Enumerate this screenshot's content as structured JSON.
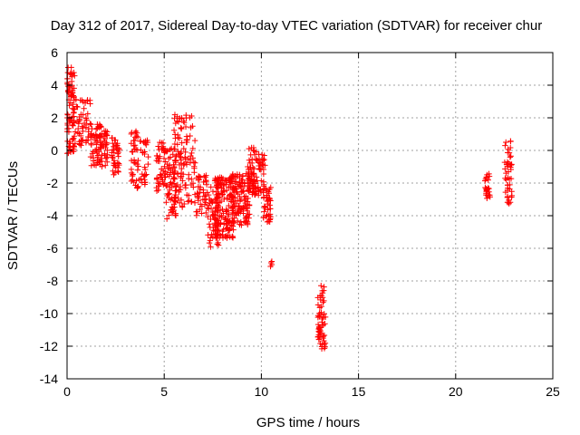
{
  "chart_data": {
    "type": "scatter",
    "title": "Day 312 of 2017, Sidereal Day-to-day VTEC variation (SDTVAR) for receiver chur",
    "xlabel": "GPS time / hours",
    "ylabel": "SDTVAR / TECUs",
    "xlim": [
      0,
      25
    ],
    "ylim": [
      -14,
      6
    ],
    "xticks": [
      "0",
      "5",
      "10",
      "15",
      "20",
      "25"
    ],
    "yticks": [
      "-14",
      "-12",
      "-10",
      "-8",
      "-6",
      "-4",
      "-2",
      "0",
      "2",
      "4",
      "6"
    ],
    "grid": true,
    "marker": "plus",
    "marker_color": "#ff0000",
    "clusters": [
      {
        "x": [
          0.0,
          0.4
        ],
        "y": [
          -0.2,
          5.1
        ],
        "n": 90
      },
      {
        "x": [
          0.4,
          1.2
        ],
        "y": [
          0.3,
          3.2
        ],
        "n": 50
      },
      {
        "x": [
          1.2,
          2.1
        ],
        "y": [
          -1.0,
          1.6
        ],
        "n": 90
      },
      {
        "x": [
          2.3,
          2.7
        ],
        "y": [
          -1.5,
          0.8
        ],
        "n": 40
      },
      {
        "x": [
          3.3,
          3.7
        ],
        "y": [
          -2.4,
          1.2
        ],
        "n": 40
      },
      {
        "x": [
          3.7,
          4.2
        ],
        "y": [
          -2.2,
          0.8
        ],
        "n": 30
      },
      {
        "x": [
          4.6,
          5.1
        ],
        "y": [
          -2.5,
          0.5
        ],
        "n": 50
      },
      {
        "x": [
          5.1,
          5.6
        ],
        "y": [
          -4.2,
          0.2
        ],
        "n": 60
      },
      {
        "x": [
          5.5,
          6.6
        ],
        "y": [
          -3.5,
          2.2
        ],
        "n": 120
      },
      {
        "x": [
          6.6,
          7.2
        ],
        "y": [
          -4.0,
          -1.5
        ],
        "n": 40
      },
      {
        "x": [
          7.2,
          7.8
        ],
        "y": [
          -6.0,
          -2.2
        ],
        "n": 60
      },
      {
        "x": [
          7.6,
          8.6
        ],
        "y": [
          -5.4,
          -1.6
        ],
        "n": 150
      },
      {
        "x": [
          8.4,
          9.4
        ],
        "y": [
          -4.6,
          -1.4
        ],
        "n": 120
      },
      {
        "x": [
          9.3,
          10.2
        ],
        "y": [
          -2.8,
          0.2
        ],
        "n": 100
      },
      {
        "x": [
          10.1,
          10.5
        ],
        "y": [
          -4.4,
          -2.2
        ],
        "n": 40
      },
      {
        "x": [
          10.4,
          10.6
        ],
        "y": [
          -7.2,
          -6.8
        ],
        "n": 4
      },
      {
        "x": [
          12.9,
          13.3
        ],
        "y": [
          -12.2,
          -8.2
        ],
        "n": 60
      },
      {
        "x": [
          21.5,
          21.8
        ],
        "y": [
          -3.0,
          -1.2
        ],
        "n": 25
      },
      {
        "x": [
          22.5,
          22.9
        ],
        "y": [
          -3.4,
          0.7
        ],
        "n": 45
      }
    ]
  }
}
